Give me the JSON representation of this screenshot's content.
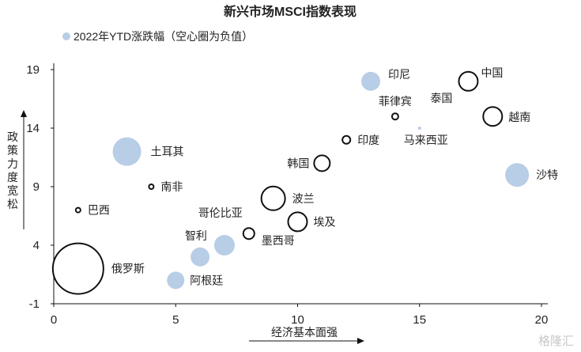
{
  "chart_data": {
    "type": "scatter",
    "title": "新兴市场MSCI指数表现",
    "legend": {
      "label": "2022年YTD涨跌幅（空心圈为负值）",
      "placement": "top-left"
    },
    "xlabel": "经济基本面强",
    "ylabel": "政策力度宽松",
    "xlim": [
      0,
      20
    ],
    "ylim": [
      -1,
      19
    ],
    "xticks": [
      "0",
      "5",
      "10",
      "15",
      "20"
    ],
    "yticks": [
      "-1",
      "4",
      "9",
      "14",
      "19"
    ],
    "colors": {
      "positive_fill": "#b8cde6",
      "negative_stroke": "#111111"
    },
    "points": [
      {
        "name": "印尼",
        "x": 13,
        "y": 18,
        "size": 12,
        "negative": false
      },
      {
        "name": "中国",
        "x": 17,
        "y": 18,
        "size": 12,
        "negative": true
      },
      {
        "name": "泰国",
        "x": 17,
        "y": 18,
        "size": 0,
        "negative": false
      },
      {
        "name": "菲律宾",
        "x": 14,
        "y": 15,
        "size": 4,
        "negative": true
      },
      {
        "name": "越南",
        "x": 18,
        "y": 15,
        "size": 12,
        "negative": true
      },
      {
        "name": "马来西亚",
        "x": 15,
        "y": 14,
        "size": 2,
        "negative": false
      },
      {
        "name": "印度",
        "x": 12,
        "y": 13,
        "size": 5,
        "negative": true
      },
      {
        "name": "土耳其",
        "x": 3,
        "y": 12,
        "size": 18,
        "negative": false
      },
      {
        "name": "韩国",
        "x": 11,
        "y": 11,
        "size": 10,
        "negative": true
      },
      {
        "name": "沙特",
        "x": 19,
        "y": 10,
        "size": 15,
        "negative": false
      },
      {
        "name": "南非",
        "x": 4,
        "y": 9,
        "size": 3,
        "negative": true
      },
      {
        "name": "波兰",
        "x": 9,
        "y": 8,
        "size": 15,
        "negative": true
      },
      {
        "name": "巴西",
        "x": 1,
        "y": 7,
        "size": 3,
        "negative": true
      },
      {
        "name": "埃及",
        "x": 10,
        "y": 6,
        "size": 12,
        "negative": true
      },
      {
        "name": "哥伦比亚",
        "x": 8,
        "y": 5,
        "size": 7,
        "negative": true
      },
      {
        "name": "墨西哥",
        "x": 8,
        "y": 5,
        "size": 0,
        "negative": true
      },
      {
        "name": "智利",
        "x": 7,
        "y": 4,
        "size": 13,
        "negative": false
      },
      {
        "name": "智利",
        "x": 6,
        "y": 3,
        "size": 12,
        "negative": false
      },
      {
        "name": "俄罗斯",
        "x": 1,
        "y": 2,
        "size": 32,
        "negative": true
      },
      {
        "name": "阿根廷",
        "x": 5,
        "y": 1,
        "size": 11,
        "negative": false
      }
    ]
  },
  "watermark": "格隆汇"
}
